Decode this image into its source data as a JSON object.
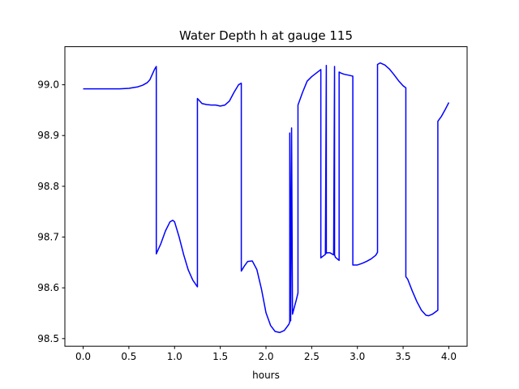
{
  "chart_data": {
    "type": "line",
    "title": "Water Depth h at gauge 115",
    "xlabel": "hours",
    "ylabel": "",
    "xlim": [
      -0.2,
      4.2
    ],
    "ylim": [
      98.485,
      99.075
    ],
    "x_ticks": [
      0.0,
      0.5,
      1.0,
      1.5,
      2.0,
      2.5,
      3.0,
      3.5,
      4.0
    ],
    "x_tick_labels": [
      "0.0",
      "0.5",
      "1.0",
      "1.5",
      "2.0",
      "2.5",
      "3.0",
      "3.5",
      "4.0"
    ],
    "y_ticks": [
      98.5,
      98.6,
      98.7,
      98.8,
      98.9,
      99.0
    ],
    "y_tick_labels": [
      "98.5",
      "98.6",
      "98.7",
      "98.8",
      "98.9",
      "99.0"
    ],
    "grid": false,
    "series": [
      {
        "color": "#0000ff",
        "x": [
          0.0,
          0.2,
          0.4,
          0.5,
          0.6,
          0.65,
          0.7,
          0.73,
          0.76,
          0.78,
          0.8,
          0.8,
          0.85,
          0.9,
          0.95,
          0.98,
          1.0,
          1.05,
          1.1,
          1.15,
          1.2,
          1.25,
          1.25,
          1.3,
          1.35,
          1.4,
          1.45,
          1.5,
          1.55,
          1.6,
          1.65,
          1.7,
          1.73,
          1.73,
          1.76,
          1.8,
          1.85,
          1.9,
          1.95,
          2.0,
          2.05,
          2.1,
          2.15,
          2.2,
          2.25,
          2.26,
          2.26,
          2.27,
          2.28,
          2.29,
          2.3,
          2.33,
          2.35,
          2.35,
          2.4,
          2.45,
          2.5,
          2.55,
          2.6,
          2.6,
          2.65,
          2.66,
          2.66,
          2.67,
          2.7,
          2.74,
          2.75,
          2.75,
          2.76,
          2.78,
          2.8,
          2.8,
          2.82,
          2.85,
          2.9,
          2.95,
          2.95,
          3.0,
          3.05,
          3.1,
          3.15,
          3.2,
          3.22,
          3.22,
          3.25,
          3.3,
          3.35,
          3.4,
          3.45,
          3.5,
          3.53,
          3.53,
          3.55,
          3.6,
          3.65,
          3.7,
          3.75,
          3.78,
          3.82,
          3.85,
          3.88,
          3.88,
          3.92,
          3.96,
          4.0
        ],
        "values": [
          98.992,
          98.992,
          98.992,
          98.993,
          98.996,
          98.999,
          99.004,
          99.01,
          99.022,
          99.03,
          99.036,
          98.667,
          98.687,
          98.712,
          98.73,
          98.733,
          98.73,
          98.7,
          98.665,
          98.635,
          98.615,
          98.602,
          98.973,
          98.963,
          98.961,
          98.96,
          98.96,
          98.958,
          98.96,
          98.968,
          98.985,
          99.0,
          99.003,
          98.633,
          98.642,
          98.652,
          98.653,
          98.636,
          98.598,
          98.551,
          98.526,
          98.514,
          98.512,
          98.516,
          98.528,
          98.533,
          98.905,
          98.535,
          98.915,
          98.548,
          98.555,
          98.575,
          98.59,
          98.96,
          98.985,
          99.007,
          99.016,
          99.023,
          99.03,
          98.659,
          98.666,
          99.038,
          98.668,
          98.669,
          98.669,
          98.665,
          99.036,
          98.665,
          98.66,
          98.657,
          98.654,
          99.025,
          99.023,
          99.021,
          99.019,
          99.017,
          98.645,
          98.645,
          98.648,
          98.652,
          98.657,
          98.664,
          98.67,
          99.04,
          99.043,
          99.039,
          99.031,
          99.02,
          99.008,
          98.998,
          98.994,
          98.622,
          98.617,
          98.594,
          98.573,
          98.556,
          98.546,
          98.545,
          98.548,
          98.552,
          98.556,
          98.928,
          98.938,
          98.951,
          98.965
        ]
      }
    ]
  }
}
